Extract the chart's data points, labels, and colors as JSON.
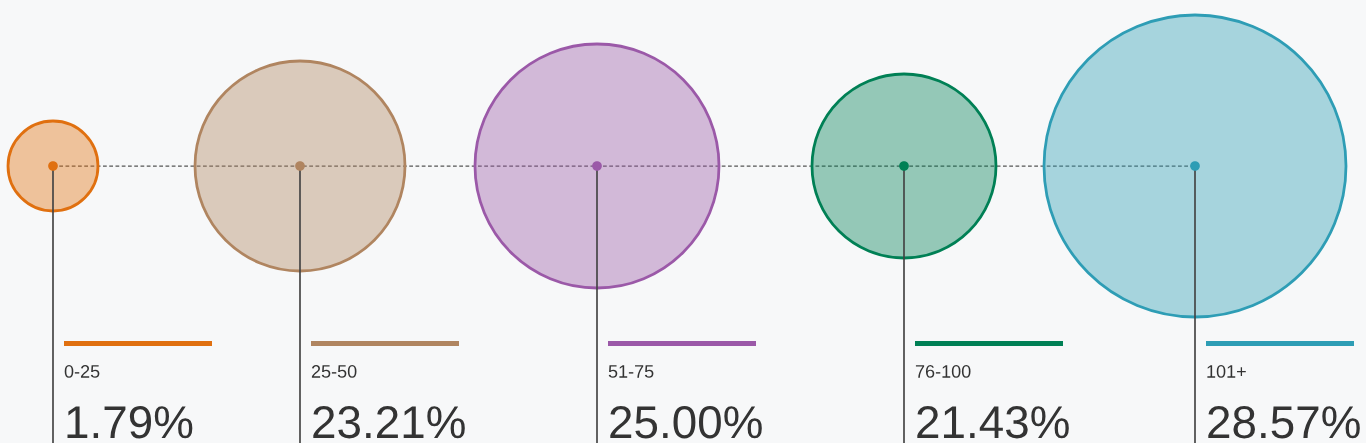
{
  "chart_data": {
    "type": "other",
    "categories": [
      "0-25",
      "25-50",
      "51-75",
      "76-100",
      "101+"
    ],
    "values": [
      1.79,
      23.21,
      25.0,
      21.43,
      28.57
    ],
    "value_labels": [
      "1.79%",
      "23.21%",
      "25.00%",
      "21.43%",
      "28.57%"
    ],
    "colors": [
      "#e07010",
      "#b08560",
      "#9b59a8",
      "#008055",
      "#2e9db5"
    ]
  }
}
